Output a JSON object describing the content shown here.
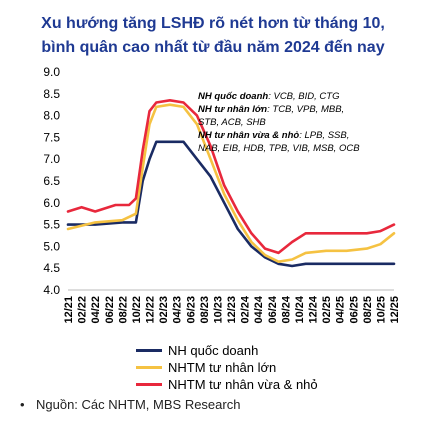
{
  "chart_data": {
    "type": "line",
    "title_line1": "Xu hướng tăng LSHĐ rõ nét hơn từ tháng 10,",
    "title_line2": "bình quân cao nhất từ đầu năm 2024 đến nay",
    "ylim": [
      4.0,
      9.0
    ],
    "yticks": [
      "9.0",
      "8.5",
      "8.0",
      "7.5",
      "7.0",
      "6.5",
      "6.0",
      "5.5",
      "5.0",
      "4.5",
      "4.0"
    ],
    "x_labels": [
      "12/21",
      "02/22",
      "04/22",
      "06/22",
      "08/22",
      "10/22",
      "12/22",
      "02/23",
      "04/23",
      "06/23",
      "08/23",
      "10/23",
      "12/23",
      "02/24",
      "04/24",
      "06/24",
      "08/24",
      "10/24",
      "12/24",
      "02/25",
      "04/25",
      "06/25",
      "08/25",
      "10/25",
      "12/25"
    ],
    "x_range": [
      0,
      48
    ],
    "series": [
      {
        "name": "NH quốc doanh",
        "color": "#1a2b63",
        "points": [
          [
            0,
            5.5
          ],
          [
            4,
            5.5
          ],
          [
            8,
            5.55
          ],
          [
            10,
            5.55
          ],
          [
            11,
            6.5
          ],
          [
            12,
            7.0
          ],
          [
            13,
            7.4
          ],
          [
            17,
            7.4
          ],
          [
            19,
            7.0
          ],
          [
            21,
            6.6
          ],
          [
            23,
            6.0
          ],
          [
            25,
            5.4
          ],
          [
            27,
            5.0
          ],
          [
            29,
            4.75
          ],
          [
            31,
            4.6
          ],
          [
            33,
            4.55
          ],
          [
            35,
            4.6
          ],
          [
            40,
            4.6
          ],
          [
            45,
            4.6
          ],
          [
            48,
            4.6
          ]
        ]
      },
      {
        "name": "NHTM tư nhân lớn",
        "color": "#f5c242",
        "points": [
          [
            0,
            5.4
          ],
          [
            4,
            5.55
          ],
          [
            8,
            5.6
          ],
          [
            10,
            5.75
          ],
          [
            11,
            6.8
          ],
          [
            12,
            7.8
          ],
          [
            13,
            8.2
          ],
          [
            15,
            8.25
          ],
          [
            17,
            8.2
          ],
          [
            19,
            7.8
          ],
          [
            21,
            7.0
          ],
          [
            23,
            6.2
          ],
          [
            25,
            5.6
          ],
          [
            27,
            5.1
          ],
          [
            29,
            4.8
          ],
          [
            31,
            4.65
          ],
          [
            33,
            4.7
          ],
          [
            35,
            4.85
          ],
          [
            38,
            4.9
          ],
          [
            41,
            4.9
          ],
          [
            44,
            4.95
          ],
          [
            46,
            5.05
          ],
          [
            48,
            5.3
          ]
        ]
      },
      {
        "name": "NHTM tư nhân vừa & nhỏ",
        "color": "#e8283c",
        "points": [
          [
            0,
            5.8
          ],
          [
            2,
            5.9
          ],
          [
            4,
            5.8
          ],
          [
            7,
            5.95
          ],
          [
            9,
            5.95
          ],
          [
            10,
            6.1
          ],
          [
            11,
            7.2
          ],
          [
            12,
            8.1
          ],
          [
            13,
            8.3
          ],
          [
            15,
            8.35
          ],
          [
            17,
            8.3
          ],
          [
            19,
            8.0
          ],
          [
            21,
            7.3
          ],
          [
            23,
            6.4
          ],
          [
            25,
            5.8
          ],
          [
            27,
            5.3
          ],
          [
            29,
            4.95
          ],
          [
            31,
            4.85
          ],
          [
            33,
            5.1
          ],
          [
            35,
            5.3
          ],
          [
            38,
            5.3
          ],
          [
            41,
            5.3
          ],
          [
            44,
            5.3
          ],
          [
            46,
            5.35
          ],
          [
            48,
            5.5
          ]
        ]
      }
    ],
    "annotation": [
      {
        "label": "NH quốc doanh",
        "text": ": VCB, BID, CTG"
      },
      {
        "label": "NH tư nhân lớn",
        "text": ": TCB, VPB, MBB,"
      },
      {
        "label": "",
        "text": "STB, ACB, SHB"
      },
      {
        "label": "NH tư nhân vừa & nhỏ",
        "text": ": LPB, SSB,"
      },
      {
        "label": "",
        "text": "NAB, EIB, HDB, TPB, VIB, MSB, OCB"
      }
    ],
    "source": "Nguồn: Các NHTM, MBS Research"
  }
}
